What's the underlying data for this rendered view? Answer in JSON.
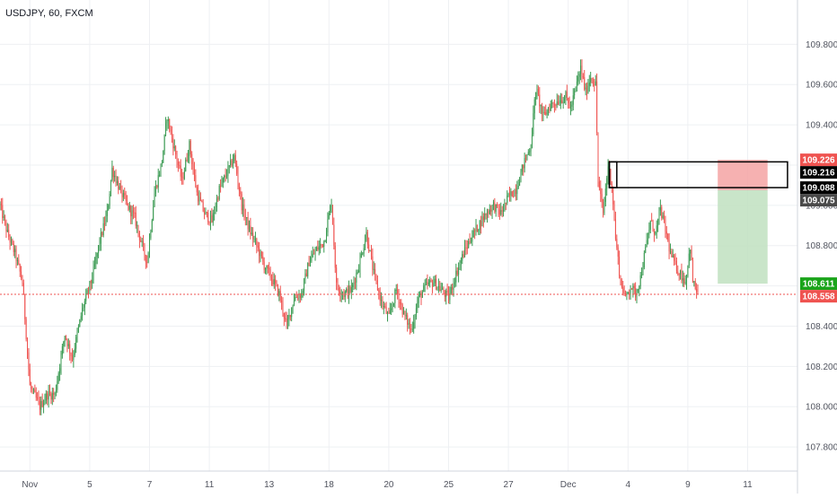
{
  "header": {
    "symbol_title": "USDJPY, 60, FXCM"
  },
  "colors": {
    "up": "#26a69a",
    "up_body": "#3a9a52",
    "down": "#ef5350",
    "grid": "#eef0f3",
    "axis_text": "#50535e",
    "current_line": "#ef5350",
    "risk_zone": "#f4a3a3",
    "reward_zone": "#bfe0bf",
    "box_stroke": "#000000"
  },
  "chart_data": {
    "type": "candlestick",
    "title": "USDJPY, 60, FXCM",
    "xlabel": "",
    "ylabel": "",
    "grid": true,
    "ylim": [
      107.68,
      110.02
    ],
    "y_ticks": [
      107.8,
      108.0,
      108.2,
      108.4,
      108.6,
      108.8,
      109.0,
      109.2,
      109.4,
      109.6,
      109.8
    ],
    "y_tick_labels": [
      "107.800",
      "108.000",
      "108.200",
      "108.400",
      "",
      "108.800",
      "109.000",
      "",
      "109.400",
      "109.600",
      "109.800"
    ],
    "x_tick_labels": [
      "Nov",
      "5",
      "7",
      "11",
      "13",
      "18",
      "20",
      "25",
      "27",
      "Dec",
      "4",
      "9",
      "11"
    ],
    "x_tick_positions_hours": [
      24,
      72,
      120,
      168,
      216,
      264,
      312,
      360,
      408,
      456,
      504,
      552,
      600
    ],
    "anchors": [
      [
        0,
        109.0
      ],
      [
        6,
        108.86
      ],
      [
        12,
        108.76
      ],
      [
        18,
        108.62
      ],
      [
        24,
        108.1
      ],
      [
        32,
        108.0
      ],
      [
        38,
        108.06
      ],
      [
        44,
        108.06
      ],
      [
        52,
        108.36
      ],
      [
        58,
        108.24
      ],
      [
        66,
        108.48
      ],
      [
        74,
        108.64
      ],
      [
        80,
        108.82
      ],
      [
        86,
        108.96
      ],
      [
        90,
        109.18
      ],
      [
        96,
        109.08
      ],
      [
        102,
        109.0
      ],
      [
        108,
        108.94
      ],
      [
        114,
        108.8
      ],
      [
        118,
        108.72
      ],
      [
        124,
        109.06
      ],
      [
        130,
        109.22
      ],
      [
        134,
        109.44
      ],
      [
        140,
        109.28
      ],
      [
        146,
        109.12
      ],
      [
        152,
        109.3
      ],
      [
        158,
        109.06
      ],
      [
        164,
        108.96
      ],
      [
        170,
        108.92
      ],
      [
        176,
        109.08
      ],
      [
        182,
        109.16
      ],
      [
        188,
        109.24
      ],
      [
        194,
        109.0
      ],
      [
        200,
        108.88
      ],
      [
        206,
        108.8
      ],
      [
        212,
        108.7
      ],
      [
        218,
        108.64
      ],
      [
        224,
        108.56
      ],
      [
        230,
        108.4
      ],
      [
        236,
        108.54
      ],
      [
        242,
        108.56
      ],
      [
        248,
        108.72
      ],
      [
        254,
        108.78
      ],
      [
        260,
        108.82
      ],
      [
        266,
        109.02
      ],
      [
        270,
        108.6
      ],
      [
        276,
        108.56
      ],
      [
        282,
        108.58
      ],
      [
        288,
        108.7
      ],
      [
        294,
        108.86
      ],
      [
        300,
        108.66
      ],
      [
        306,
        108.52
      ],
      [
        312,
        108.44
      ],
      [
        318,
        108.58
      ],
      [
        324,
        108.46
      ],
      [
        330,
        108.38
      ],
      [
        336,
        108.54
      ],
      [
        342,
        108.6
      ],
      [
        348,
        108.62
      ],
      [
        354,
        108.58
      ],
      [
        360,
        108.54
      ],
      [
        366,
        108.66
      ],
      [
        372,
        108.76
      ],
      [
        378,
        108.84
      ],
      [
        384,
        108.9
      ],
      [
        390,
        108.96
      ],
      [
        396,
        109.0
      ],
      [
        402,
        108.96
      ],
      [
        408,
        109.04
      ],
      [
        414,
        109.08
      ],
      [
        420,
        109.2
      ],
      [
        426,
        109.3
      ],
      [
        430,
        109.58
      ],
      [
        436,
        109.44
      ],
      [
        442,
        109.5
      ],
      [
        448,
        109.52
      ],
      [
        454,
        109.54
      ],
      [
        458,
        109.48
      ],
      [
        462,
        109.58
      ],
      [
        466,
        109.68
      ],
      [
        470,
        109.56
      ],
      [
        474,
        109.64
      ],
      [
        478,
        109.6
      ],
      [
        480,
        109.12
      ],
      [
        484,
        108.96
      ],
      [
        488,
        109.2
      ],
      [
        491,
        109.1
      ],
      [
        494,
        108.84
      ],
      [
        498,
        108.62
      ],
      [
        502,
        108.54
      ],
      [
        506,
        108.6
      ],
      [
        510,
        108.56
      ],
      [
        514,
        108.64
      ],
      [
        518,
        108.78
      ],
      [
        522,
        108.92
      ],
      [
        526,
        108.86
      ],
      [
        530,
        108.98
      ],
      [
        534,
        108.88
      ],
      [
        538,
        108.76
      ],
      [
        542,
        108.7
      ],
      [
        546,
        108.66
      ],
      [
        550,
        108.62
      ],
      [
        554,
        108.8
      ],
      [
        556,
        108.62
      ],
      [
        560,
        108.56
      ]
    ],
    "current_price": 108.558,
    "price_tags": [
      {
        "value": 109.226,
        "label": "109.226",
        "bg": "#ef5350",
        "fg": "#ffffff"
      },
      {
        "value": 109.216,
        "label": "109.216",
        "bg": "#000000",
        "fg": "#ffffff"
      },
      {
        "value": 109.088,
        "label": "109.088",
        "bg": "#000000",
        "fg": "#ffffff"
      },
      {
        "value": 109.075,
        "label": "109.075",
        "bg": "#4a4a4a",
        "fg": "#ffffff"
      },
      {
        "value": 108.611,
        "label": "108.611",
        "bg": "#1aa41a",
        "fg": "#ffffff"
      },
      {
        "value": 108.558,
        "label": "108.558",
        "bg": "#ef5350",
        "fg": "#ffffff"
      }
    ],
    "position_tool": {
      "x_start_hours": 576,
      "x_end_hours": 616,
      "stop": 109.226,
      "entry": 109.075,
      "target": 108.611
    },
    "rect_box": {
      "x_start_hours": 489,
      "x_end_hours": 632,
      "top": 109.216,
      "bottom": 109.088
    },
    "small_box": {
      "x_start_hours": 489,
      "x_end_hours": 495,
      "top": 109.216,
      "bottom": 109.088
    }
  }
}
